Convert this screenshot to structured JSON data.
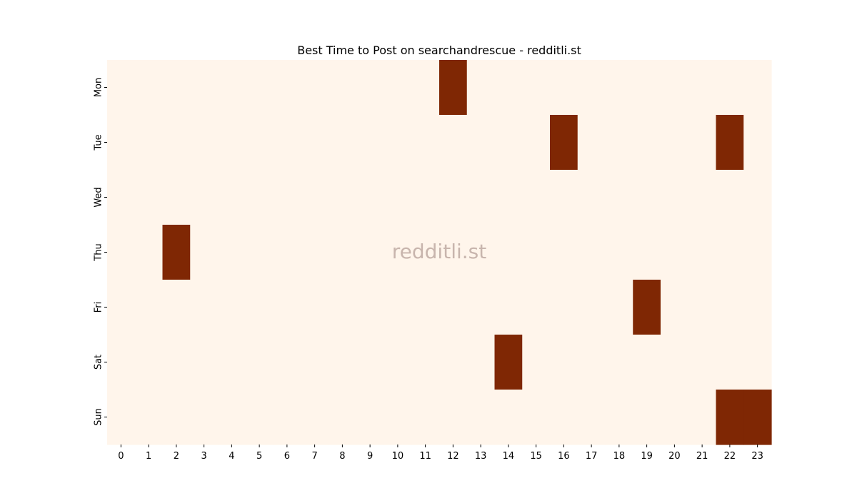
{
  "chart_data": {
    "type": "heatmap",
    "title": "Best Time to Post on searchandrescue - redditli.st",
    "watermark": "redditli.st",
    "xlabel": "",
    "ylabel": "",
    "x_categories": [
      "0",
      "1",
      "2",
      "3",
      "4",
      "5",
      "6",
      "7",
      "8",
      "9",
      "10",
      "11",
      "12",
      "13",
      "14",
      "15",
      "16",
      "17",
      "18",
      "19",
      "20",
      "21",
      "22",
      "23"
    ],
    "y_categories": [
      "Mon",
      "Tue",
      "Wed",
      "Thu",
      "Fri",
      "Sat",
      "Sun"
    ],
    "values": [
      [
        0,
        0,
        0,
        0,
        0,
        0,
        0,
        0,
        0,
        0,
        0,
        0,
        1,
        0,
        0,
        0,
        0,
        0,
        0,
        0,
        0,
        0,
        0,
        0
      ],
      [
        0,
        0,
        0,
        0,
        0,
        0,
        0,
        0,
        0,
        0,
        0,
        0,
        0,
        0,
        0,
        0,
        1,
        0,
        0,
        0,
        0,
        0,
        1,
        0
      ],
      [
        0,
        0,
        0,
        0,
        0,
        0,
        0,
        0,
        0,
        0,
        0,
        0,
        0,
        0,
        0,
        0,
        0,
        0,
        0,
        0,
        0,
        0,
        0,
        0
      ],
      [
        0,
        0,
        1,
        0,
        0,
        0,
        0,
        0,
        0,
        0,
        0,
        0,
        0,
        0,
        0,
        0,
        0,
        0,
        0,
        0,
        0,
        0,
        0,
        0
      ],
      [
        0,
        0,
        0,
        0,
        0,
        0,
        0,
        0,
        0,
        0,
        0,
        0,
        0,
        0,
        0,
        0,
        0,
        0,
        0,
        1,
        0,
        0,
        0,
        0
      ],
      [
        0,
        0,
        0,
        0,
        0,
        0,
        0,
        0,
        0,
        0,
        0,
        0,
        0,
        0,
        1,
        0,
        0,
        0,
        0,
        0,
        0,
        0,
        0,
        0
      ],
      [
        0,
        0,
        0,
        0,
        0,
        0,
        0,
        0,
        0,
        0,
        0,
        0,
        0,
        0,
        0,
        0,
        0,
        0,
        0,
        0,
        0,
        0,
        1,
        1
      ]
    ],
    "value_range": [
      0,
      1
    ],
    "colors": {
      "low": "#fff5eb",
      "high": "#7f2704"
    },
    "grid": false,
    "legend": "none"
  }
}
